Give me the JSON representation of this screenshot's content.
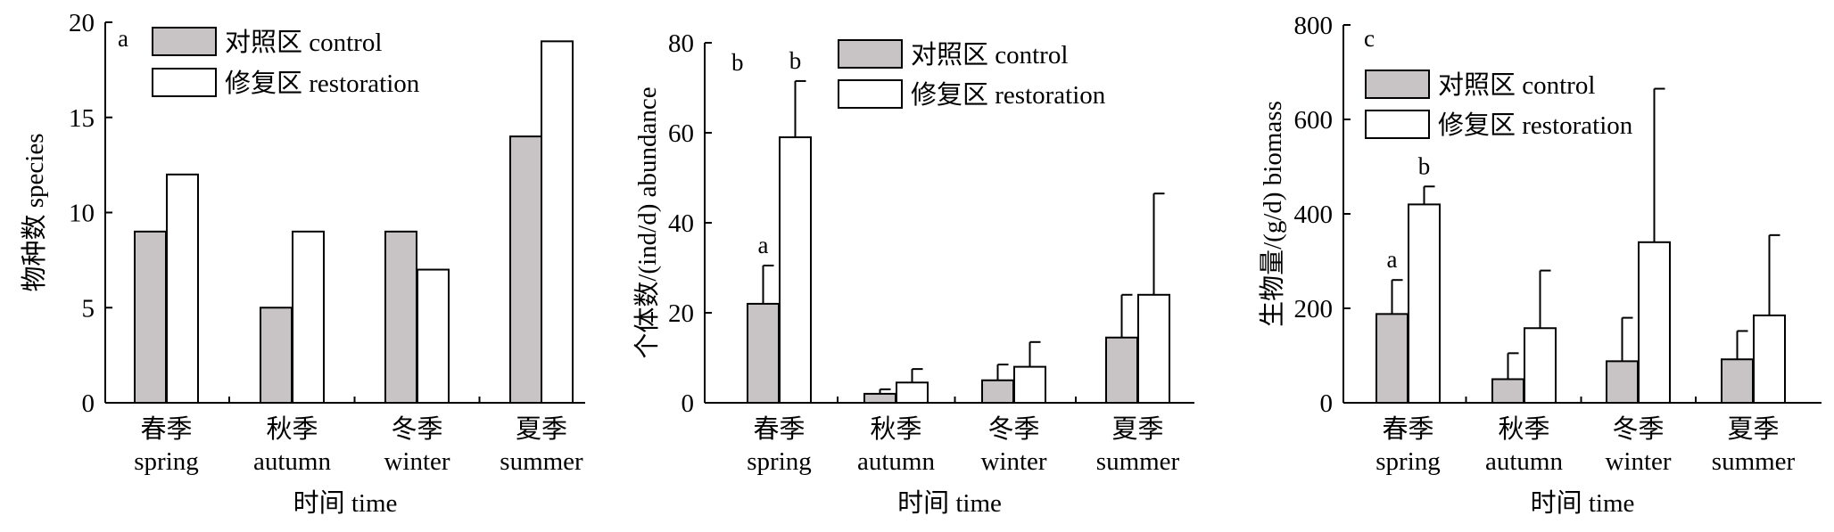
{
  "colors": {
    "control": "#c8c4c6",
    "restoration": "#ffffff",
    "stroke": "#000000"
  },
  "chart_data": [
    {
      "type": "bar",
      "panel": "a",
      "categories": [
        "春季\nspring",
        "秋季\nautumn",
        "冬季\nwinter",
        "夏季\nsummer"
      ],
      "series": [
        {
          "name": "对照区 control",
          "values": [
            9,
            5,
            9,
            14
          ]
        },
        {
          "name": "修复区 restoration",
          "values": [
            12,
            9,
            7,
            19
          ]
        }
      ],
      "xlabel": "时间 time",
      "ylabel": "物种数 species",
      "ylim": [
        0,
        20
      ],
      "yticks": [
        0,
        5,
        10,
        15,
        20
      ],
      "grid": false,
      "legend": "top-left"
    },
    {
      "type": "bar",
      "panel": "b",
      "categories": [
        "春季\nspring",
        "秋季\nautumn",
        "冬季\nwinter",
        "夏季\nsummer"
      ],
      "series": [
        {
          "name": "对照区 control",
          "values": [
            22,
            2,
            5,
            14.5
          ],
          "errors": [
            8.5,
            1,
            3.5,
            9.5
          ],
          "labels": [
            "a",
            "",
            "",
            ""
          ]
        },
        {
          "name": "修复区 restoration",
          "values": [
            59,
            4.5,
            8,
            24
          ],
          "errors": [
            12.5,
            3,
            5.5,
            22.5
          ],
          "labels": [
            "b",
            "",
            "",
            ""
          ]
        }
      ],
      "xlabel": "时间 time",
      "ylabel": "个体数/(ind/d) abundance",
      "ylim": [
        0,
        80
      ],
      "yticks": [
        0,
        20,
        40,
        60,
        80
      ],
      "grid": false,
      "legend": "top-center"
    },
    {
      "type": "bar",
      "panel": "c",
      "categories": [
        "春季\nspring",
        "秋季\nautumn",
        "冬季\nwinter",
        "夏季\nsummer"
      ],
      "series": [
        {
          "name": "对照区 control",
          "values": [
            188,
            50,
            88,
            92
          ],
          "errors": [
            72,
            55,
            92,
            60
          ],
          "labels": [
            "a",
            "",
            "",
            ""
          ]
        },
        {
          "name": "修复区 restoration",
          "values": [
            420,
            158,
            340,
            185
          ],
          "errors": [
            38,
            122,
            325,
            170
          ],
          "labels": [
            "b",
            "",
            "",
            ""
          ]
        }
      ],
      "xlabel": "时间 time",
      "ylabel": "生物量/(g/d) biomass",
      "ylim": [
        0,
        800
      ],
      "yticks": [
        0,
        200,
        400,
        600,
        800
      ],
      "grid": false,
      "legend": "top-left"
    }
  ]
}
